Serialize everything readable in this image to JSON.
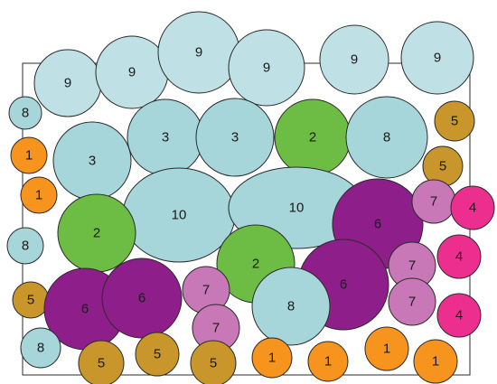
{
  "colors": {
    "background": "#ffffff",
    "border": "#2b2b2b",
    "1": "#f7941d",
    "2": "#6dbd45",
    "3": "#a6d5da",
    "4": "#ec2f8f",
    "5": "#c9962b",
    "6": "#8e1e8a",
    "7": "#c978b7",
    "8": "#a6d5da",
    "9": "#bfe1e6",
    "10": "#a6d5da"
  },
  "labels": [
    "9",
    "9",
    "9",
    "9",
    "9",
    "9",
    "8",
    "5",
    "1",
    "3",
    "3",
    "3",
    "2",
    "8",
    "5",
    "1",
    "10",
    "10",
    "6",
    "7",
    "4",
    "8",
    "2",
    "2",
    "6",
    "7",
    "4",
    "5",
    "6",
    "6",
    "7",
    "7",
    "8",
    "7",
    "4",
    "8",
    "5",
    "5",
    "5",
    "1",
    "1",
    "1",
    "1"
  ]
}
